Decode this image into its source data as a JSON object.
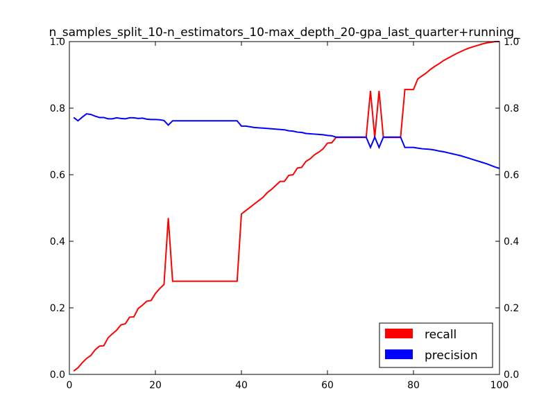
{
  "chart_data": {
    "type": "line",
    "title": "n_samples_split_10-n_estimators_10-max_depth_20-gpa_last_quarter+running_",
    "xlabel": "",
    "ylabel": "",
    "xlim": [
      0,
      100
    ],
    "ylim": [
      0,
      1.0
    ],
    "y2lim": [
      0,
      1.0
    ],
    "x_ticks": [
      "0",
      "20",
      "40",
      "60",
      "80",
      "100"
    ],
    "y_ticks": [
      "0.0",
      "0.2",
      "0.4",
      "0.6",
      "0.8",
      "1.0"
    ],
    "y2_ticks": [
      "0.0",
      "0.2",
      "0.4",
      "0.6",
      "0.8",
      "1.0"
    ],
    "grid": false,
    "legend_position": "lower-right",
    "series": [
      {
        "name": "recall",
        "color": "#ff0000",
        "x": [
          1,
          2,
          3,
          4,
          5,
          6,
          7,
          8,
          9,
          10,
          11,
          12,
          13,
          14,
          15,
          16,
          17,
          18,
          19,
          20,
          21,
          22,
          23,
          24,
          25,
          26,
          27,
          28,
          29,
          30,
          31,
          32,
          33,
          34,
          35,
          36,
          37,
          38,
          39,
          40,
          41,
          42,
          43,
          44,
          45,
          46,
          47,
          48,
          49,
          50,
          51,
          52,
          53,
          54,
          55,
          56,
          57,
          58,
          59,
          60,
          61,
          62,
          63,
          64,
          65,
          66,
          67,
          68,
          69,
          70,
          71,
          72,
          73,
          74,
          75,
          76,
          77,
          78,
          79,
          80,
          81,
          82,
          83,
          84,
          85,
          86,
          87,
          88,
          89,
          90,
          91,
          92,
          93,
          94,
          95,
          96,
          97,
          98,
          99,
          100
        ],
        "values": [
          0.01,
          0.02,
          0.035,
          0.048,
          0.057,
          0.074,
          0.085,
          0.086,
          0.11,
          0.122,
          0.133,
          0.149,
          0.152,
          0.172,
          0.173,
          0.198,
          0.208,
          0.22,
          0.222,
          0.243,
          0.258,
          0.27,
          0.47,
          0.28,
          0.28,
          0.28,
          0.28,
          0.28,
          0.28,
          0.28,
          0.28,
          0.28,
          0.28,
          0.28,
          0.28,
          0.28,
          0.28,
          0.28,
          0.28,
          0.482,
          0.492,
          0.502,
          0.512,
          0.522,
          0.532,
          0.546,
          0.556,
          0.568,
          0.58,
          0.58,
          0.598,
          0.6,
          0.62,
          0.622,
          0.64,
          0.648,
          0.66,
          0.668,
          0.678,
          0.695,
          0.696,
          0.712,
          0.712,
          0.712,
          0.712,
          0.712,
          0.712,
          0.712,
          0.712,
          0.852,
          0.712,
          0.852,
          0.712,
          0.712,
          0.712,
          0.712,
          0.712,
          0.856,
          0.856,
          0.856,
          0.888,
          0.897,
          0.906,
          0.917,
          0.926,
          0.934,
          0.943,
          0.95,
          0.957,
          0.964,
          0.97,
          0.976,
          0.981,
          0.985,
          0.989,
          0.993,
          0.996,
          0.998,
          1.0,
          1.0
        ]
      },
      {
        "name": "precision",
        "color": "#0000ff",
        "x": [
          1,
          2,
          3,
          4,
          5,
          6,
          7,
          8,
          9,
          10,
          11,
          12,
          13,
          14,
          15,
          16,
          17,
          18,
          19,
          20,
          21,
          22,
          23,
          24,
          25,
          26,
          27,
          28,
          29,
          30,
          31,
          32,
          33,
          34,
          35,
          36,
          37,
          38,
          39,
          40,
          41,
          42,
          43,
          44,
          45,
          46,
          47,
          48,
          49,
          50,
          51,
          52,
          53,
          54,
          55,
          56,
          57,
          58,
          59,
          60,
          61,
          62,
          63,
          64,
          65,
          66,
          67,
          68,
          69,
          70,
          71,
          72,
          73,
          74,
          75,
          76,
          77,
          78,
          79,
          80,
          81,
          82,
          83,
          84,
          85,
          86,
          87,
          88,
          89,
          90,
          91,
          92,
          93,
          94,
          95,
          96,
          97,
          98,
          99,
          100
        ],
        "values": [
          0.772,
          0.762,
          0.773,
          0.783,
          0.781,
          0.776,
          0.772,
          0.772,
          0.768,
          0.768,
          0.771,
          0.769,
          0.768,
          0.771,
          0.771,
          0.769,
          0.77,
          0.767,
          0.766,
          0.766,
          0.765,
          0.763,
          0.749,
          0.762,
          0.762,
          0.762,
          0.762,
          0.762,
          0.762,
          0.762,
          0.762,
          0.762,
          0.762,
          0.762,
          0.762,
          0.762,
          0.762,
          0.762,
          0.762,
          0.746,
          0.746,
          0.744,
          0.742,
          0.741,
          0.74,
          0.739,
          0.738,
          0.737,
          0.736,
          0.735,
          0.732,
          0.731,
          0.728,
          0.727,
          0.724,
          0.723,
          0.722,
          0.721,
          0.72,
          0.718,
          0.717,
          0.713,
          0.713,
          0.713,
          0.713,
          0.713,
          0.713,
          0.713,
          0.713,
          0.682,
          0.713,
          0.682,
          0.713,
          0.713,
          0.713,
          0.713,
          0.713,
          0.682,
          0.682,
          0.682,
          0.68,
          0.678,
          0.677,
          0.676,
          0.674,
          0.671,
          0.669,
          0.666,
          0.663,
          0.66,
          0.657,
          0.653,
          0.649,
          0.645,
          0.641,
          0.637,
          0.633,
          0.628,
          0.623,
          0.619
        ]
      }
    ]
  }
}
